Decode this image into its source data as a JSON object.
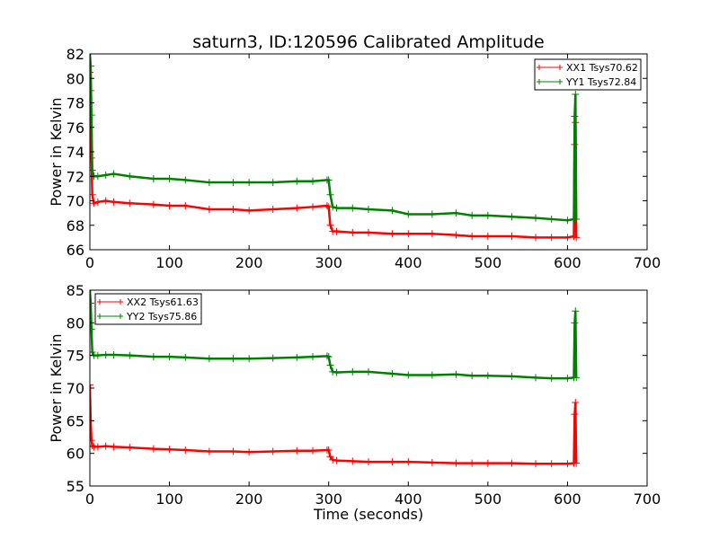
{
  "chart_data": [
    {
      "type": "line",
      "title": "saturn3, ID:120596 Calibrated Amplitude",
      "xlabel": "",
      "ylabel": "Power in Kelvin",
      "xlim": [
        0,
        700
      ],
      "ylim": [
        66,
        82
      ],
      "xticks": [
        0,
        100,
        200,
        300,
        400,
        500,
        600,
        700
      ],
      "yticks": [
        66,
        68,
        70,
        72,
        74,
        76,
        78,
        80,
        82
      ],
      "legend_position": "top-right",
      "grid": false,
      "series": [
        {
          "name": "XX1 Tsys70.62",
          "color": "#ff0000",
          "marker": "+",
          "x": [
            0,
            1,
            2,
            3,
            5,
            10,
            20,
            30,
            50,
            80,
            100,
            120,
            150,
            180,
            200,
            230,
            260,
            280,
            298,
            300,
            302,
            305,
            310,
            330,
            350,
            380,
            400,
            430,
            460,
            480,
            500,
            530,
            560,
            580,
            600,
            608,
            609,
            610,
            611
          ],
          "y": [
            80.5,
            79.0,
            73.5,
            70.5,
            69.8,
            69.9,
            70.0,
            69.9,
            69.8,
            69.7,
            69.6,
            69.6,
            69.3,
            69.3,
            69.2,
            69.3,
            69.4,
            69.5,
            69.6,
            69.5,
            68.0,
            67.5,
            67.5,
            67.4,
            67.4,
            67.3,
            67.3,
            67.3,
            67.2,
            67.1,
            67.1,
            67.1,
            67.0,
            67.0,
            67.0,
            67.1,
            74.6,
            76.4,
            67.0
          ]
        },
        {
          "name": "YY1 Tsys72.84",
          "color": "#008000",
          "marker": "+",
          "x": [
            0,
            1,
            2,
            3,
            5,
            10,
            20,
            30,
            50,
            80,
            100,
            120,
            150,
            180,
            200,
            230,
            260,
            280,
            298,
            300,
            302,
            305,
            310,
            330,
            350,
            380,
            400,
            430,
            460,
            480,
            500,
            530,
            560,
            580,
            600,
            608,
            609,
            610,
            611
          ],
          "y": [
            82.0,
            81.0,
            77.0,
            72.5,
            72.0,
            72.0,
            72.1,
            72.2,
            72.0,
            71.8,
            71.8,
            71.7,
            71.5,
            71.5,
            71.5,
            71.5,
            71.6,
            71.6,
            71.7,
            71.7,
            70.5,
            69.5,
            69.4,
            69.4,
            69.3,
            69.2,
            68.9,
            68.9,
            69.0,
            68.8,
            68.8,
            68.7,
            68.6,
            68.5,
            68.4,
            68.5,
            76.9,
            78.7,
            68.5
          ]
        }
      ]
    },
    {
      "type": "line",
      "title": "",
      "xlabel": "Time (seconds)",
      "ylabel": "Power in Kelvin",
      "xlim": [
        0,
        700
      ],
      "ylim": [
        55,
        85
      ],
      "xticks": [
        0,
        100,
        200,
        300,
        400,
        500,
        600,
        700
      ],
      "yticks": [
        55,
        60,
        65,
        70,
        75,
        80,
        85
      ],
      "legend_position": "top-left",
      "grid": false,
      "series": [
        {
          "name": "XX2 Tsys61.63",
          "color": "#ff0000",
          "marker": "+",
          "x": [
            0,
            1,
            2,
            3,
            5,
            10,
            20,
            30,
            50,
            80,
            100,
            120,
            150,
            180,
            200,
            230,
            260,
            280,
            298,
            300,
            302,
            305,
            310,
            330,
            350,
            380,
            400,
            430,
            460,
            480,
            500,
            530,
            560,
            580,
            600,
            608,
            609,
            610,
            611
          ],
          "y": [
            70.5,
            65.0,
            62.0,
            61.2,
            61.0,
            61.0,
            61.1,
            61.0,
            60.9,
            60.7,
            60.6,
            60.5,
            60.3,
            60.3,
            60.2,
            60.3,
            60.4,
            60.4,
            60.5,
            60.5,
            59.5,
            59.0,
            58.9,
            58.8,
            58.7,
            58.7,
            58.7,
            58.6,
            58.5,
            58.5,
            58.5,
            58.5,
            58.4,
            58.4,
            58.4,
            58.5,
            66.0,
            67.8,
            58.5
          ]
        },
        {
          "name": "YY2 Tsys75.86",
          "color": "#008000",
          "marker": "+",
          "x": [
            0,
            1,
            2,
            3,
            5,
            10,
            20,
            30,
            50,
            80,
            100,
            120,
            150,
            180,
            200,
            230,
            260,
            280,
            298,
            300,
            302,
            305,
            310,
            330,
            350,
            380,
            400,
            430,
            460,
            480,
            500,
            530,
            560,
            580,
            600,
            608,
            609,
            610,
            611
          ],
          "y": [
            85.0,
            83.0,
            79.0,
            75.5,
            75.0,
            75.0,
            75.1,
            75.1,
            75.0,
            74.8,
            74.8,
            74.7,
            74.5,
            74.5,
            74.5,
            74.6,
            74.7,
            74.8,
            74.9,
            74.8,
            73.5,
            72.5,
            72.4,
            72.5,
            72.5,
            72.2,
            72.0,
            72.0,
            72.1,
            71.9,
            71.9,
            71.8,
            71.6,
            71.5,
            71.5,
            71.6,
            80.0,
            81.8,
            71.6
          ]
        }
      ]
    }
  ]
}
